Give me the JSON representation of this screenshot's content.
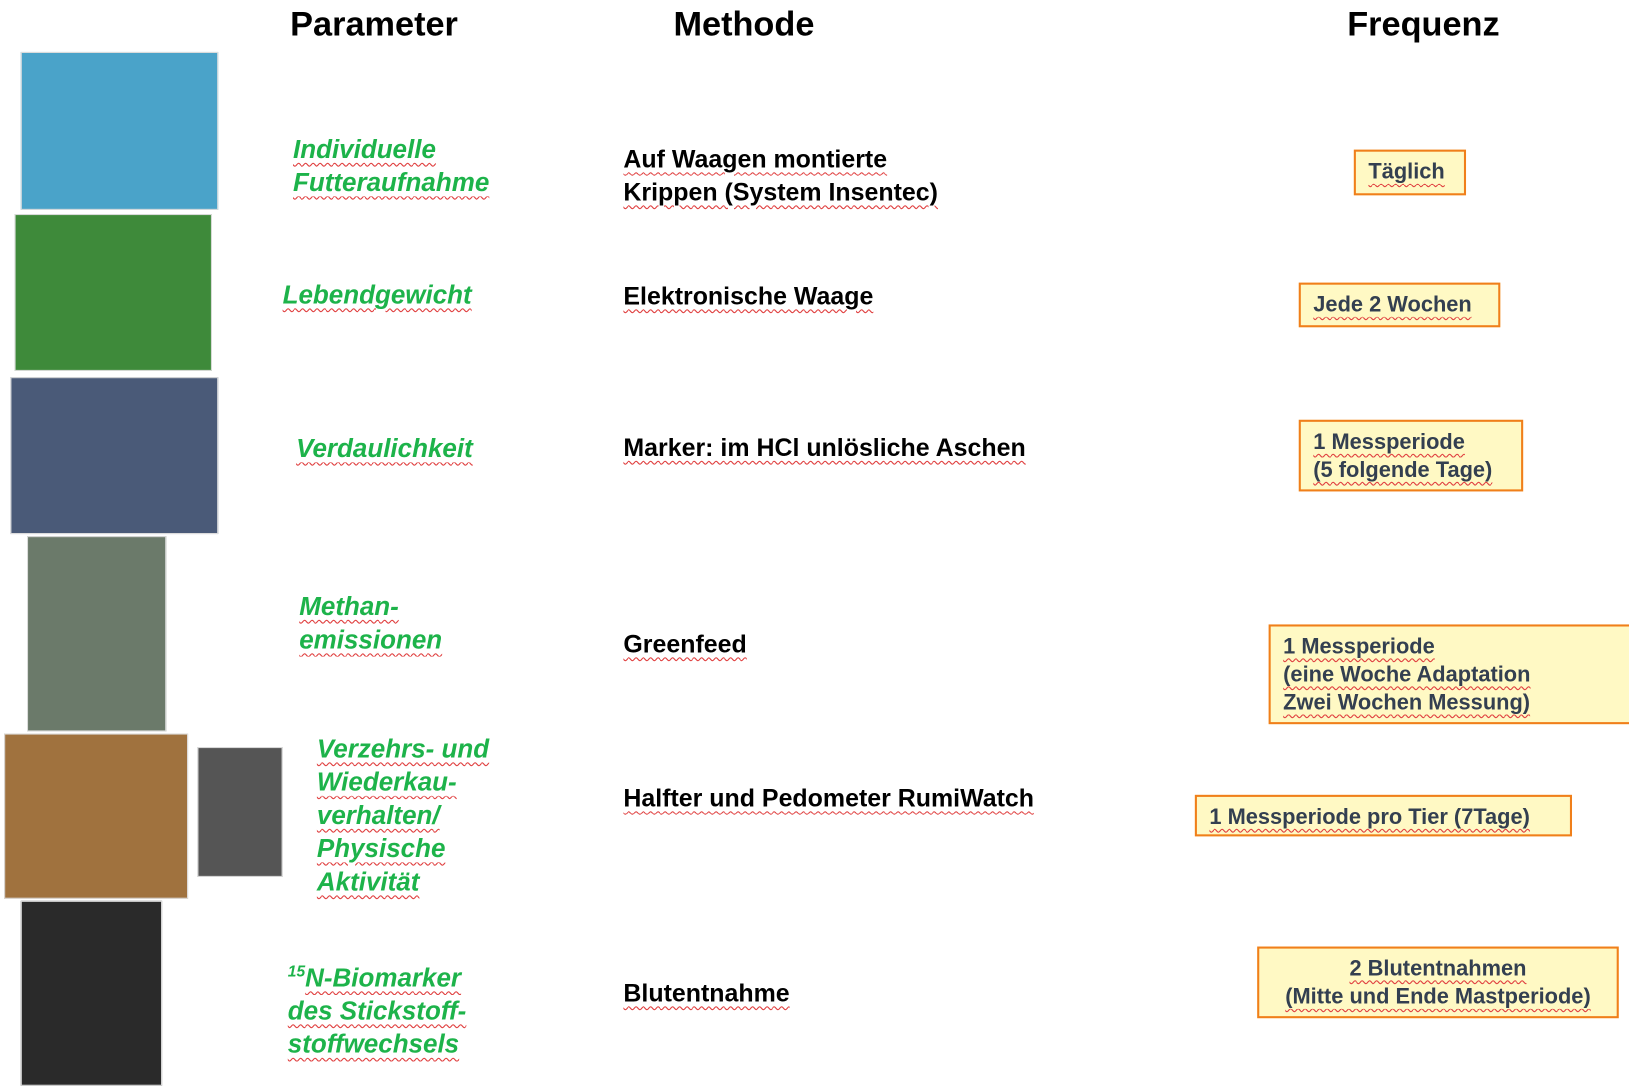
{
  "header": {
    "parameter": "Parameter",
    "methode": "Methode",
    "frequenz": "Frequenz"
  },
  "rows": [
    {
      "parameter": [
        "Individuelle",
        "Futteraufnahme"
      ],
      "methode": [
        "Auf Waagen montierte",
        "Krippen (System Insentec)"
      ],
      "frequenz": [
        "Täglich"
      ]
    },
    {
      "parameter": [
        "Lebendgewicht"
      ],
      "methode": [
        "Elektronische Waage"
      ],
      "frequenz": [
        "Jede 2 Wochen"
      ]
    },
    {
      "parameter": [
        "Verdaulichkeit"
      ],
      "methode": [
        "Marker: im HCl unlösliche Aschen"
      ],
      "frequenz": [
        "1 Messperiode",
        "(5 folgende Tage)"
      ]
    },
    {
      "parameter": [
        "Methan-",
        "emissionen"
      ],
      "methode": [
        "Greenfeed"
      ],
      "frequenz": [
        "1 Messperiode",
        "(eine Woche Adaptation",
        "Zwei Wochen Messung)"
      ]
    },
    {
      "parameter": [
        "Verzehrs- und",
        "Wiederkau-",
        "verhalten/",
        "Physische",
        "Aktivität"
      ],
      "methode": [
        "Halfter und Pedometer RumiWatch"
      ],
      "frequenz": [
        "1 Messperiode pro Tier (7Tage)"
      ]
    },
    {
      "parameter_sup": "15",
      "parameter": [
        "N-Biomarker",
        "des Stickstoff-",
        "stoffwechsels"
      ],
      "methode": [
        "Blutentnahme"
      ],
      "frequenz": [
        "2 Blutentnahmen",
        "(Mitte und Ende Mastperiode)"
      ]
    }
  ]
}
